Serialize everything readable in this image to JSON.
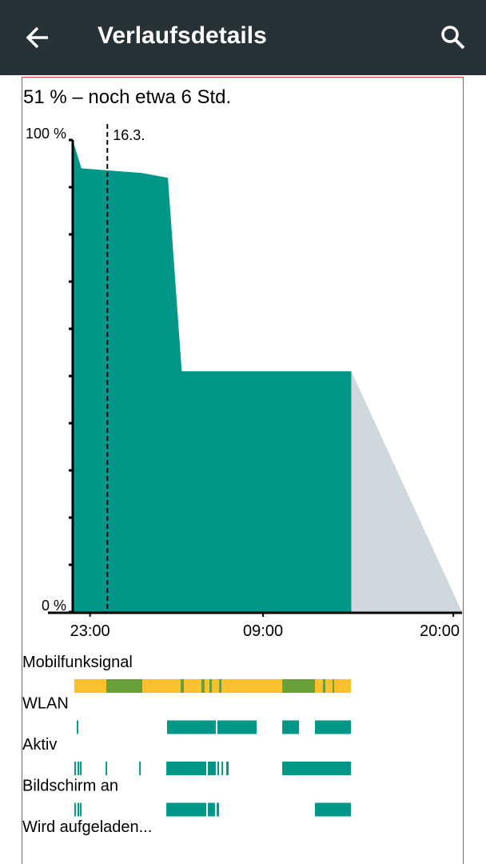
{
  "app_bar": {
    "title": "Verlaufsdetails"
  },
  "summary": "51 % – noch etwa 6 Std.",
  "chart_data": {
    "type": "area",
    "series": [
      {
        "color": "#009688",
        "x": [
          22,
          22.5,
          26,
          27.5,
          28.3,
          38.1
        ],
        "values": [
          100,
          94,
          93,
          92,
          51,
          51
        ]
      },
      {
        "color": "#cfd8dc",
        "x": [
          38.1,
          44.5
        ],
        "values": [
          51,
          0
        ]
      }
    ],
    "xlim": [
      22,
      44.5
    ],
    "xticks": [
      {
        "value": 23,
        "label": "23:00"
      },
      {
        "value": 33,
        "label": "09:00"
      },
      {
        "value": 44,
        "label": "20:00"
      }
    ],
    "ylim": [
      0,
      100
    ],
    "yticks": [
      {
        "value": 0,
        "label": "0 %"
      },
      {
        "value": 100,
        "label": "100 %"
      }
    ],
    "minor_yticks": [
      10,
      20,
      30,
      40,
      50,
      60,
      70,
      80,
      90
    ],
    "date_marker": {
      "x": 24,
      "label": "16.3."
    }
  },
  "status_rows": [
    {
      "label": "Mobilfunksignal",
      "series": [
        {
          "color": "#fbc02d",
          "segments": [
            [
              22.09,
              38.08
            ]
          ]
        },
        {
          "color": "#689f38",
          "segments": [
            [
              23.94,
              26.02
            ],
            [
              28.24,
              28.42
            ],
            [
              29.44,
              29.62
            ],
            [
              29.9,
              30.04
            ],
            [
              30.46,
              30.6
            ],
            [
              34.11,
              36.0
            ],
            [
              36.46,
              36.6
            ],
            [
              37.02,
              37.11
            ]
          ]
        }
      ]
    },
    {
      "label": "WLAN",
      "series": [
        {
          "color": "#009688",
          "segments": [
            [
              22.23,
              22.32
            ],
            [
              27.45,
              30.27
            ],
            [
              30.36,
              32.63
            ],
            [
              34.11,
              35.08
            ],
            [
              36.0,
              38.08
            ]
          ]
        }
      ]
    },
    {
      "label": "Aktiv",
      "series": [
        {
          "color": "#009688",
          "segments": [
            [
              22.09,
              22.18
            ],
            [
              22.28,
              22.37
            ],
            [
              22.42,
              22.51
            ],
            [
              23.9,
              23.99
            ],
            [
              25.84,
              25.93
            ],
            [
              27.41,
              29.72
            ],
            [
              29.81,
              30.27
            ],
            [
              30.36,
              30.46
            ],
            [
              30.6,
              30.69
            ],
            [
              30.87,
              31.01
            ],
            [
              34.11,
              38.08
            ]
          ]
        }
      ]
    },
    {
      "label": "Bildschirm an",
      "series": [
        {
          "color": "#009688",
          "segments": [
            [
              22.09,
              22.18
            ],
            [
              22.28,
              22.37
            ],
            [
              22.42,
              22.51
            ],
            [
              27.41,
              29.72
            ],
            [
              29.81,
              30.22
            ],
            [
              30.32,
              30.46
            ],
            [
              36.0,
              38.08
            ]
          ]
        }
      ]
    },
    {
      "label": "Wird aufgeladen...",
      "series": []
    }
  ]
}
